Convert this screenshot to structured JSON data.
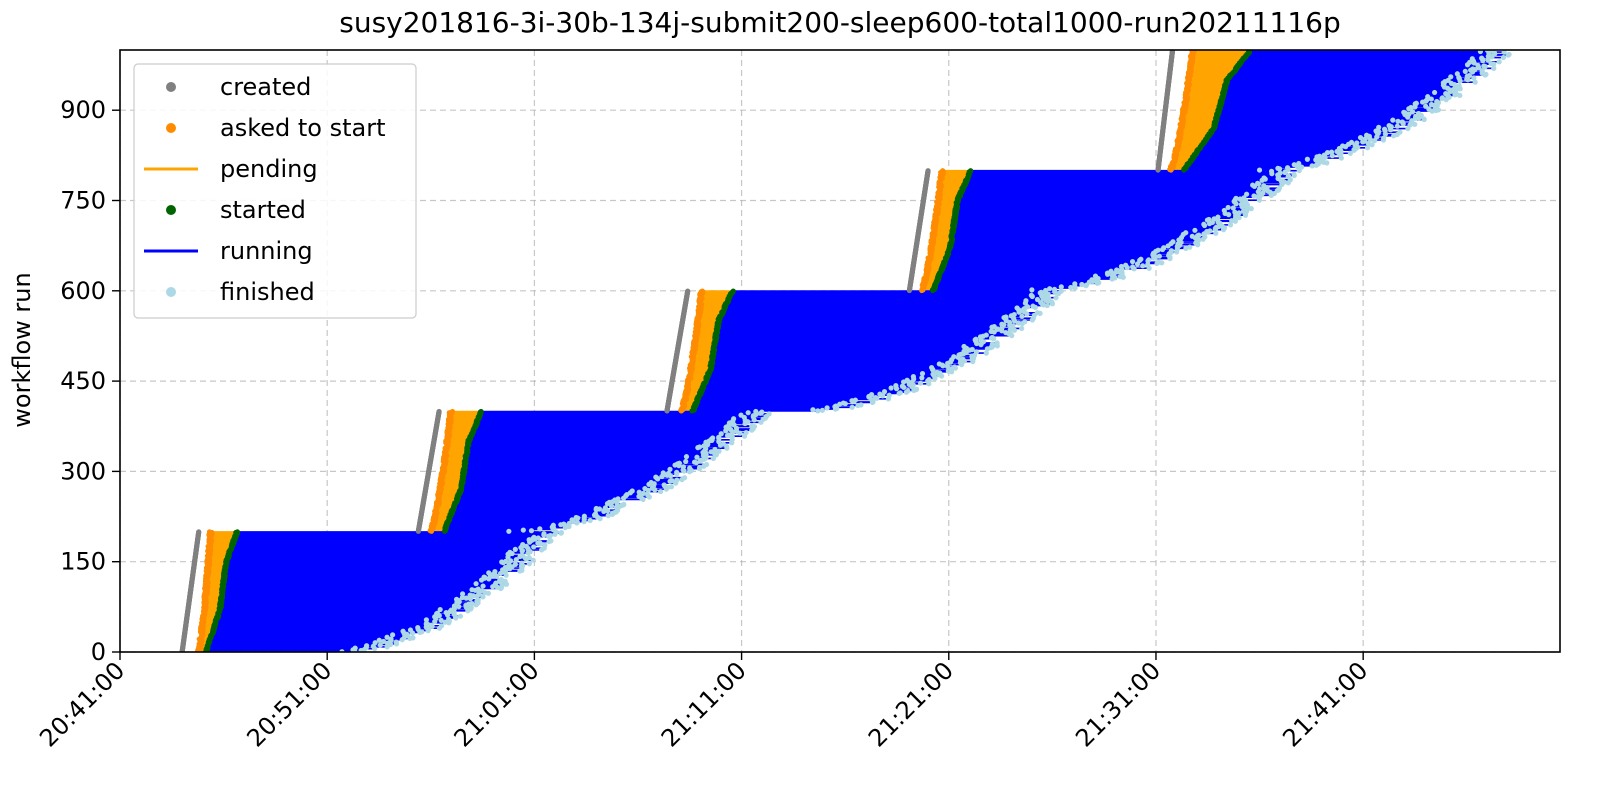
{
  "chart_data": {
    "type": "scatter",
    "title": "susy201816-3i-30b-134j-submit200-sleep600-total1000-run20211116p",
    "xlabel": "",
    "ylabel": "workflow run",
    "x_tick_labels": [
      "20:41:00",
      "20:51:00",
      "21:01:00",
      "21:11:00",
      "21:21:00",
      "21:31:00",
      "21:41:00"
    ],
    "x_tick_minutes": [
      0,
      10,
      20,
      30,
      40,
      50,
      60
    ],
    "xlim_minutes": [
      0,
      69.5
    ],
    "y_ticks": [
      0,
      150,
      300,
      450,
      600,
      750,
      900
    ],
    "ylim": [
      0,
      1000
    ],
    "grid": true,
    "legend_position": "upper left",
    "colors": {
      "created": "#808080",
      "asked_to_start": "#ff8c00",
      "pending": "#ffa500",
      "started": "#006400",
      "running": "#0000ff",
      "finished": "#add8e6"
    },
    "series": [
      {
        "name": "created",
        "style": "points"
      },
      {
        "name": "asked to start",
        "style": "points"
      },
      {
        "name": "pending",
        "style": "line"
      },
      {
        "name": "started",
        "style": "points"
      },
      {
        "name": "running",
        "style": "line"
      },
      {
        "name": "finished",
        "style": "points"
      }
    ],
    "batches": [
      {
        "runs": [
          0,
          200
        ],
        "created_minutes": [
          3.0,
          3.8
        ],
        "asked_minutes": [
          3.7,
          4.3
        ],
        "started_start_minutes": [
          4.1,
          5.6
        ],
        "started_end_minutes": [
          4.0,
          5.8
        ],
        "finished_minutes": [
          10.5,
          20.6
        ]
      },
      {
        "runs": [
          200,
          400
        ],
        "created_minutes": [
          14.4,
          15.4
        ],
        "asked_minutes": [
          14.9,
          15.9
        ],
        "started_start_minutes": [
          15.6,
          17.4
        ],
        "started_end_minutes": [
          15.6,
          18.4
        ],
        "finished_minutes": [
          19.0,
          30.8
        ]
      },
      {
        "runs": [
          400,
          600
        ],
        "created_minutes": [
          26.4,
          27.4
        ],
        "asked_minutes": [
          27.0,
          28.0
        ],
        "started_start_minutes": [
          27.6,
          29.5
        ],
        "started_end_minutes": [
          27.6,
          29.6
        ],
        "finished_minutes": [
          33.0,
          45.0
        ]
      },
      {
        "runs": [
          600,
          800
        ],
        "created_minutes": [
          38.1,
          39.0
        ],
        "asked_minutes": [
          38.6,
          39.6
        ],
        "started_start_minutes": [
          39.2,
          41.0
        ],
        "started_end_minutes": [
          39.2,
          41.2
        ],
        "finished_minutes": [
          44.0,
          56.3
        ]
      },
      {
        "runs": [
          800,
          1000
        ],
        "created_minutes": [
          50.1,
          50.8
        ],
        "asked_minutes": [
          50.6,
          51.7
        ],
        "started_start_minutes": [
          51.3,
          54.5
        ],
        "started_end_minutes": [
          51.3,
          54.6
        ],
        "finished_minutes": [
          55.0,
          66.5
        ]
      }
    ]
  }
}
